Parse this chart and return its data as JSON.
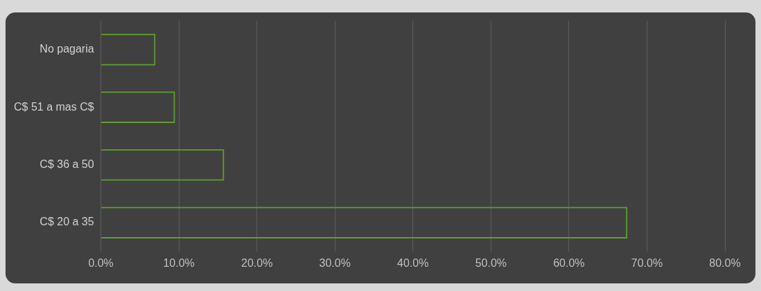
{
  "chart_data": {
    "type": "bar",
    "orientation": "horizontal",
    "categories": [
      "No pagaria",
      "C$ 51 a mas C$",
      "C$ 36 a 50",
      "C$ 20 a 35"
    ],
    "values": [
      7.0,
      9.5,
      15.8,
      67.5
    ],
    "color": "#5e9e2e",
    "xlim": [
      0,
      80
    ],
    "xticks": [
      {
        "value": 0,
        "label": "0.0%"
      },
      {
        "value": 10,
        "label": "10.0%"
      },
      {
        "value": 20,
        "label": "20.0%"
      },
      {
        "value": 30,
        "label": "30.0%"
      },
      {
        "value": 40,
        "label": "40.0%"
      },
      {
        "value": 50,
        "label": "50.0%"
      },
      {
        "value": 60,
        "label": "60.0%"
      },
      {
        "value": 70,
        "label": "70.0%"
      },
      {
        "value": 80,
        "label": "80.0%"
      }
    ],
    "grid": "x",
    "legend": false
  }
}
